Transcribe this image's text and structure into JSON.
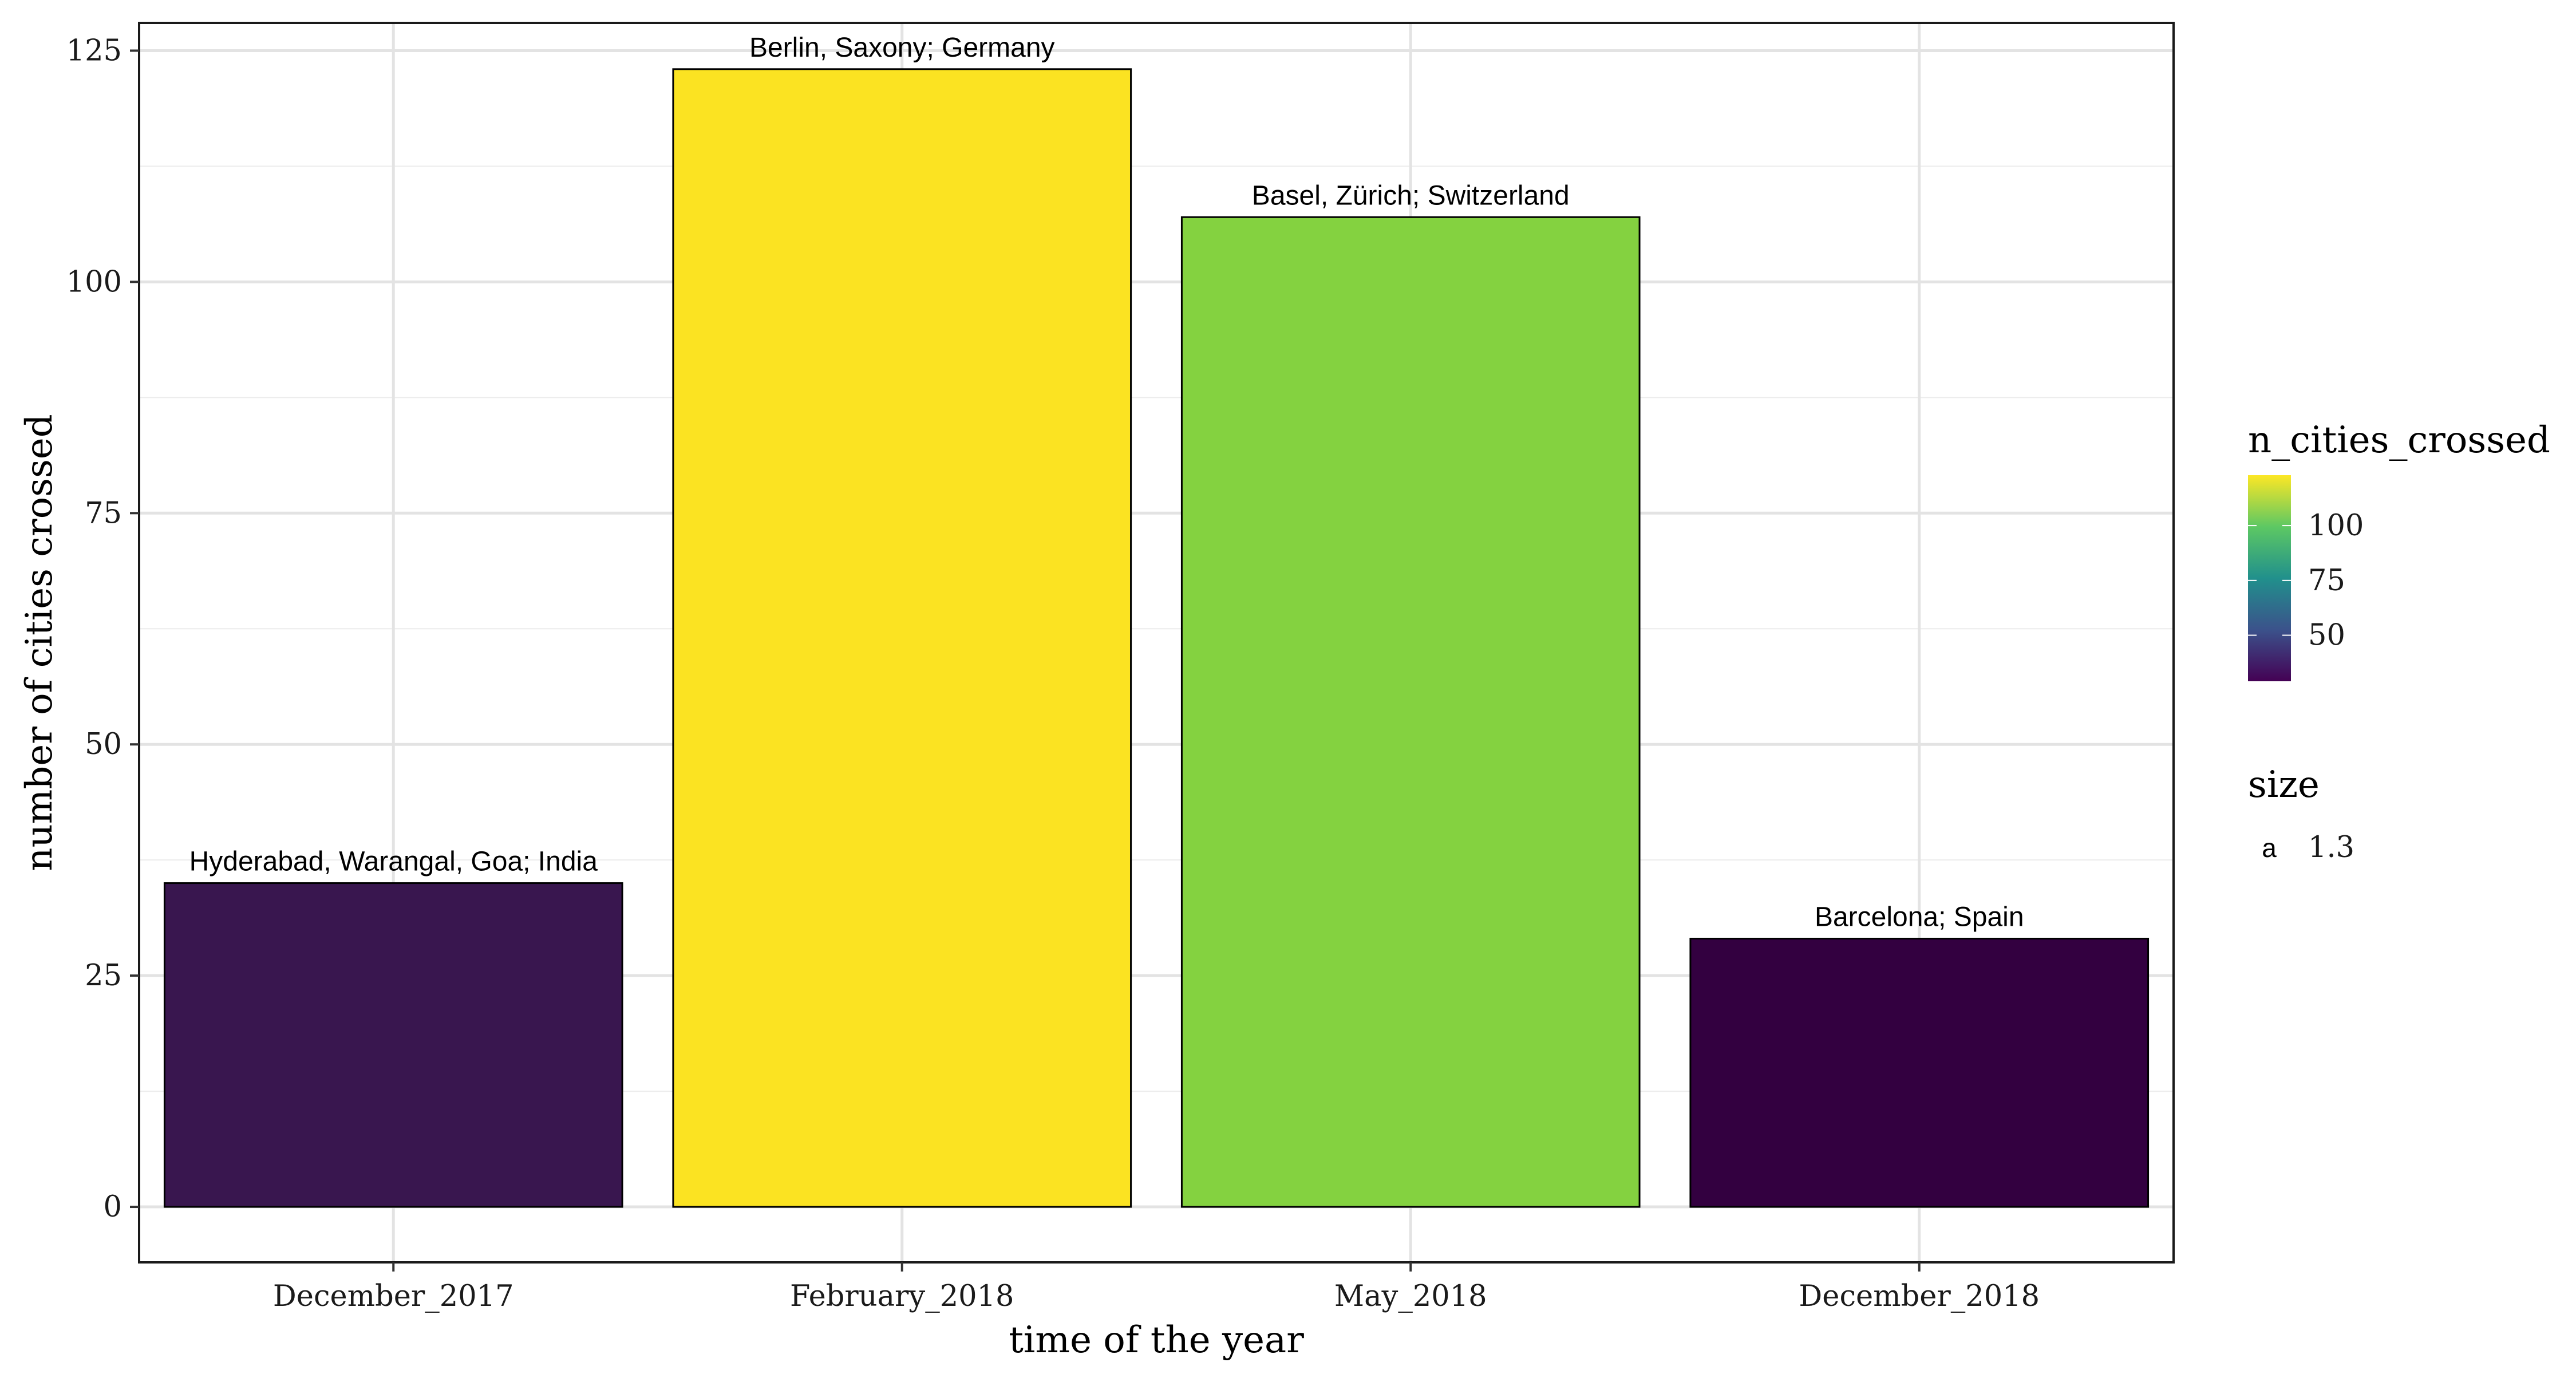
{
  "chart_data": {
    "type": "bar",
    "title": "",
    "xlabel": "time of the year",
    "ylabel": "number of cities crossed",
    "categories": [
      "December_2017",
      "February_2018",
      "May_2018",
      "December_2018"
    ],
    "values": [
      35,
      123,
      107,
      29
    ],
    "bar_labels": [
      "Hyderabad, Warangal, Goa; India",
      "Berlin, Saxony; Germany",
      "Basel, Zürich; Switzerland",
      "Barcelona; Spain"
    ],
    "ylim": [
      -6,
      128
    ],
    "yticks": [
      0,
      25,
      50,
      75,
      100,
      125
    ],
    "grid": true,
    "bar_colors": [
      "#39164f",
      "#fbe322",
      "#84d240",
      "#330040"
    ],
    "legend": {
      "placement": "right",
      "fill_title": "n_cities_crossed",
      "fill_ticks": [
        50,
        75,
        100
      ],
      "fill_range": [
        29,
        123
      ],
      "gradient": [
        "#440154",
        "#3b528b",
        "#21908c",
        "#5dc863",
        "#fde725"
      ],
      "size_title": "size",
      "size_key_glyph": "a",
      "size_value": "1.3"
    }
  }
}
